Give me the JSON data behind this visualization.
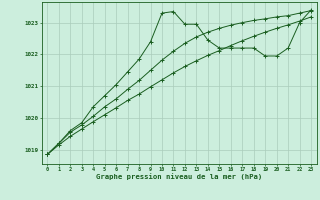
{
  "bg_color": "#cceedd",
  "grid_color": "#aaccbb",
  "line_color": "#1a5e20",
  "xlabel": "Graphe pression niveau de la mer (hPa)",
  "ylabel_ticks": [
    1019,
    1020,
    1021,
    1022,
    1023
  ],
  "xlim": [
    -0.5,
    23.5
  ],
  "ylim": [
    1018.55,
    1023.65
  ],
  "series1_x": [
    0,
    1,
    2,
    3,
    4,
    5,
    6,
    7,
    8,
    9,
    10,
    11,
    12,
    13,
    14,
    15,
    16,
    17,
    18,
    19,
    20,
    21,
    22,
    23
  ],
  "series1_y": [
    1018.85,
    1019.15,
    1019.42,
    1019.65,
    1019.88,
    1020.1,
    1020.32,
    1020.55,
    1020.75,
    1020.98,
    1021.2,
    1021.42,
    1021.62,
    1021.8,
    1021.97,
    1022.12,
    1022.28,
    1022.43,
    1022.57,
    1022.7,
    1022.82,
    1022.93,
    1023.05,
    1023.18
  ],
  "series2_x": [
    0,
    1,
    2,
    3,
    4,
    5,
    6,
    7,
    8,
    9,
    10,
    11,
    12,
    13,
    14,
    15,
    16,
    17,
    18,
    19,
    20,
    21,
    22,
    23
  ],
  "series2_y": [
    1018.85,
    1019.2,
    1019.55,
    1019.78,
    1020.05,
    1020.35,
    1020.6,
    1020.9,
    1021.18,
    1021.5,
    1021.82,
    1022.1,
    1022.35,
    1022.55,
    1022.7,
    1022.82,
    1022.92,
    1023.0,
    1023.07,
    1023.12,
    1023.18,
    1023.22,
    1023.3,
    1023.38
  ],
  "series3_x": [
    0,
    1,
    2,
    3,
    4,
    5,
    6,
    7,
    8,
    9,
    10,
    11,
    12,
    13,
    14,
    15,
    16,
    17,
    18,
    19,
    20,
    21,
    22,
    23
  ],
  "series3_y": [
    1018.85,
    1019.2,
    1019.6,
    1019.85,
    1020.35,
    1020.7,
    1021.05,
    1021.45,
    1021.85,
    1022.4,
    1023.3,
    1023.35,
    1022.95,
    1022.95,
    1022.45,
    1022.2,
    1022.2,
    1022.2,
    1022.2,
    1021.95,
    1021.95,
    1022.2,
    1023.0,
    1023.4
  ]
}
